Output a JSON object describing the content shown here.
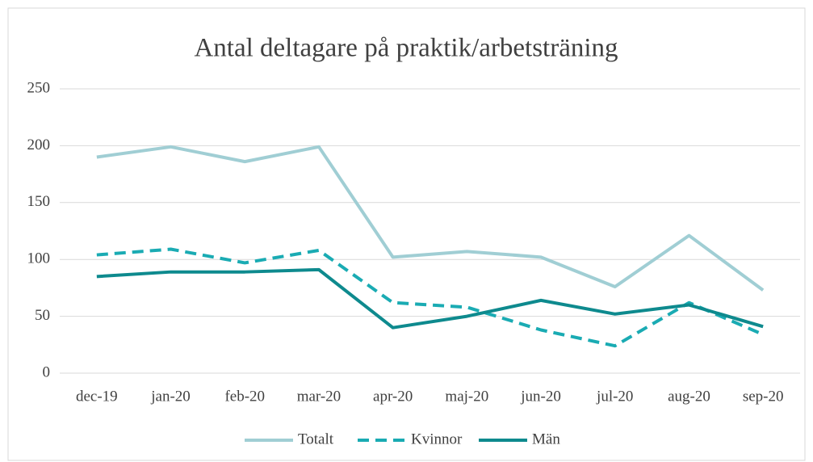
{
  "chart_data": {
    "type": "line",
    "title": "Antal deltagare på praktik/arbetsträning",
    "categories": [
      "dec-19",
      "jan-20",
      "feb-20",
      "mar-20",
      "apr-20",
      "maj-20",
      "jun-20",
      "jul-20",
      "aug-20",
      "sep-20"
    ],
    "series": [
      {
        "name": "Totalt",
        "color": "#a0ced4",
        "style": "solid",
        "values": [
          190,
          199,
          186,
          199,
          102,
          107,
          102,
          76,
          121,
          73
        ]
      },
      {
        "name": "Kvinnor",
        "color": "#1aabb3",
        "style": "dashed",
        "values": [
          104,
          109,
          97,
          108,
          62,
          58,
          38,
          24,
          62,
          34
        ]
      },
      {
        "name": "Män",
        "color": "#0e8a8e",
        "style": "solid",
        "values": [
          85,
          89,
          89,
          91,
          40,
          50,
          64,
          52,
          60,
          41
        ]
      }
    ],
    "ylim": [
      0,
      250
    ],
    "yticks": [
      0,
      50,
      100,
      150,
      200,
      250
    ],
    "grid": true,
    "legend": "bottom"
  }
}
